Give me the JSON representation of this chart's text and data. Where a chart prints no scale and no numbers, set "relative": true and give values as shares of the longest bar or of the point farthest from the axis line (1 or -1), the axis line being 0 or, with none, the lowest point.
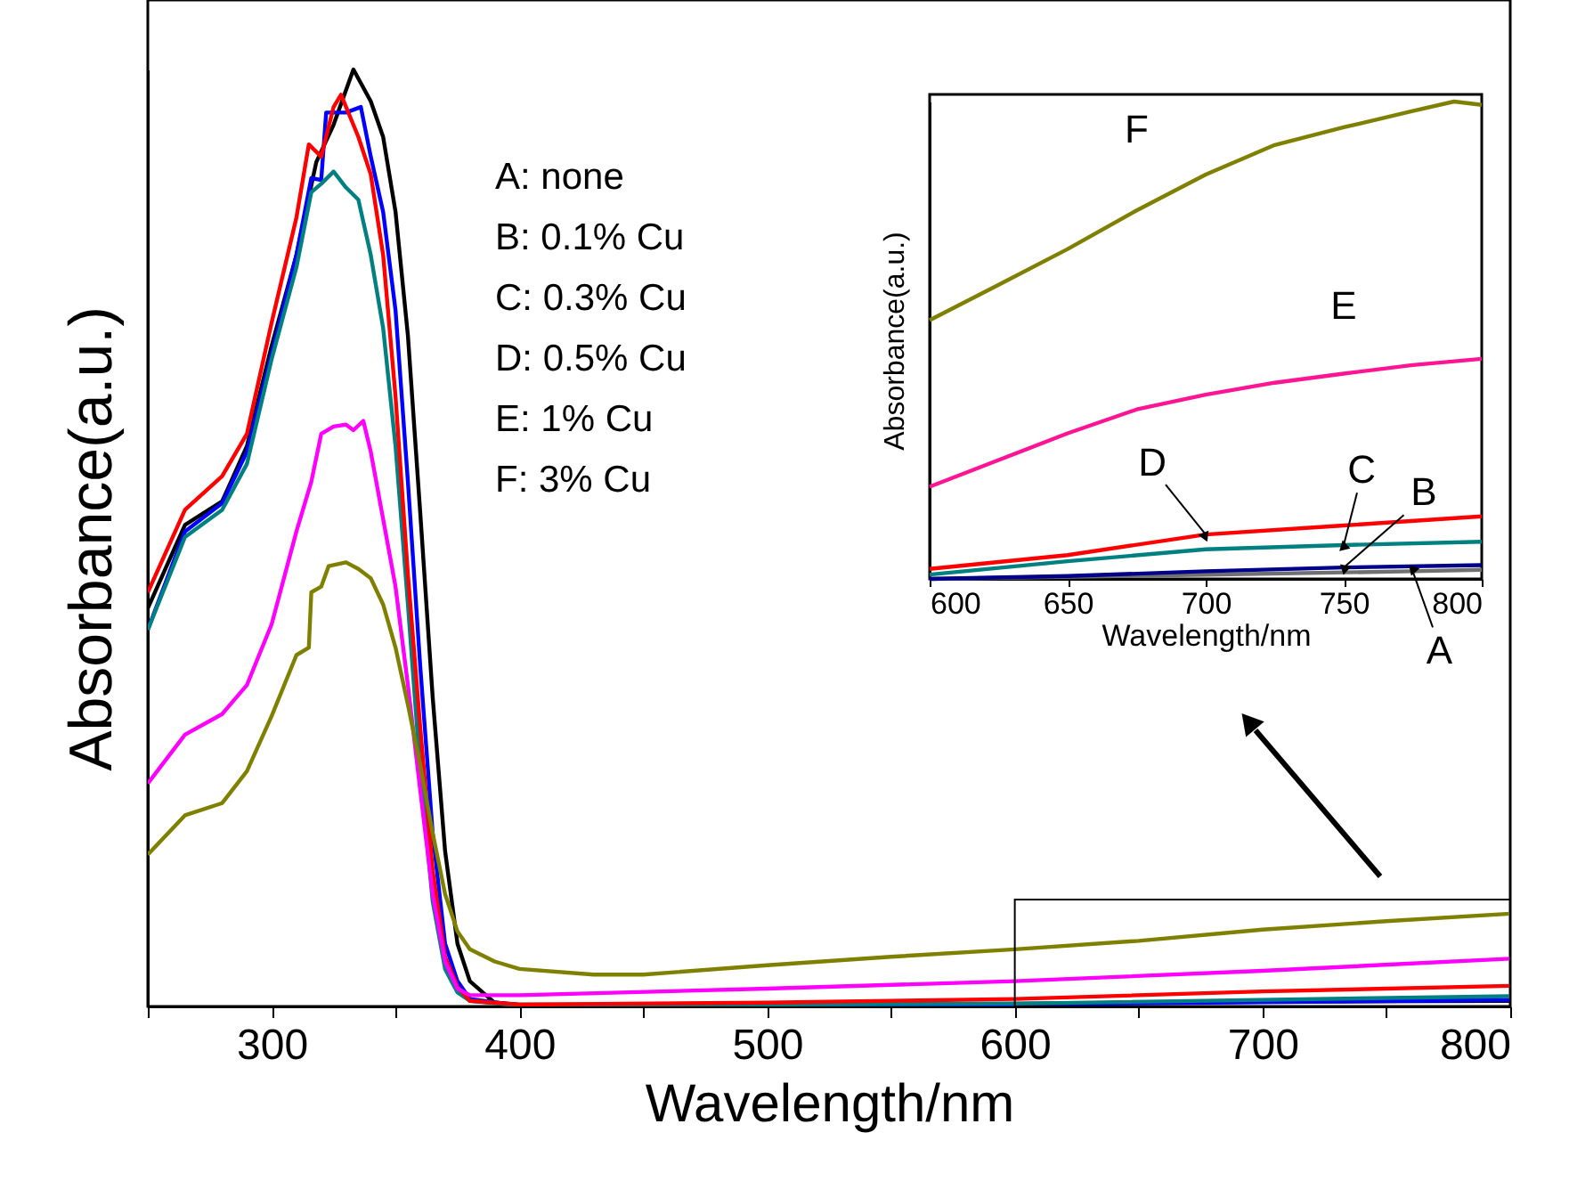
{
  "chart_data": [
    {
      "type": "line",
      "xlabel": "Wavelength/nm",
      "ylabel": "Absorbance(a.u.)",
      "relative": true,
      "xlim": [
        250,
        800
      ],
      "xticks": [
        {
          "value": 250,
          "label": null
        },
        300,
        {
          "value": 350,
          "label": null
        },
        400,
        {
          "value": 450,
          "label": null
        },
        500,
        {
          "value": 550,
          "label": null
        },
        600,
        {
          "value": 650,
          "label": null
        },
        700,
        {
          "value": 750,
          "label": null
        },
        800
      ],
      "grid": false,
      "annotations": [
        "A: none",
        "B: 0.1% Cu",
        "C: 0.3% Cu",
        "D: 0.5% Cu",
        "E: 1% Cu",
        "F: 3% Cu"
      ],
      "series": [
        {
          "color": "#000000",
          "x": [
            250,
            265,
            280,
            290,
            300,
            310,
            318,
            325,
            333,
            340,
            345,
            350,
            355,
            360,
            365,
            370,
            375,
            380,
            390,
            400,
            500,
            600,
            700,
            800
          ],
          "values": [
            0.425,
            0.514,
            0.539,
            0.598,
            0.705,
            0.802,
            0.901,
            0.941,
            1.0,
            0.966,
            0.928,
            0.848,
            0.716,
            0.526,
            0.33,
            0.166,
            0.067,
            0.027,
            0.004,
            0.002,
            0.002,
            0.003,
            0.005,
            0.006
          ]
        },
        {
          "color": "#0000ff",
          "x": [
            250,
            265,
            280,
            290,
            300,
            310,
            316,
            320,
            322,
            330,
            336,
            340,
            345,
            350,
            355,
            360,
            365,
            370,
            375,
            380,
            400,
            600,
            800
          ],
          "values": [
            0.402,
            0.507,
            0.537,
            0.592,
            0.697,
            0.802,
            0.884,
            0.882,
            0.954,
            0.954,
            0.96,
            0.907,
            0.848,
            0.743,
            0.56,
            0.362,
            0.185,
            0.067,
            0.027,
            0.008,
            0.001,
            0.002,
            0.007
          ]
        },
        {
          "color": "#008080",
          "x": [
            250,
            265,
            280,
            290,
            300,
            310,
            316,
            320,
            325,
            330,
            335,
            340,
            345,
            350,
            355,
            360,
            365,
            370,
            375,
            380,
            400,
            600,
            800
          ],
          "values": [
            0.402,
            0.501,
            0.53,
            0.579,
            0.691,
            0.789,
            0.869,
            0.878,
            0.891,
            0.874,
            0.861,
            0.802,
            0.724,
            0.598,
            0.429,
            0.251,
            0.112,
            0.04,
            0.015,
            0.006,
            0.001,
            0.003,
            0.011
          ]
        },
        {
          "color": "#ff0000",
          "x": [
            250,
            265,
            280,
            290,
            300,
            310,
            315,
            320,
            325,
            328,
            335,
            340,
            345,
            350,
            355,
            360,
            365,
            370,
            375,
            380,
            400,
            500,
            600,
            700,
            800
          ],
          "values": [
            0.442,
            0.53,
            0.566,
            0.611,
            0.73,
            0.842,
            0.92,
            0.907,
            0.96,
            0.973,
            0.928,
            0.888,
            0.802,
            0.651,
            0.461,
            0.297,
            0.145,
            0.053,
            0.021,
            0.006,
            0.002,
            0.004,
            0.008,
            0.016,
            0.022
          ]
        },
        {
          "color": "#ff00ff",
          "x": [
            250,
            265,
            280,
            290,
            300,
            310,
            316,
            320,
            325,
            330,
            333,
            337,
            340,
            345,
            350,
            355,
            360,
            365,
            370,
            375,
            380,
            400,
            500,
            600,
            700,
            800
          ],
          "values": [
            0.238,
            0.29,
            0.312,
            0.343,
            0.408,
            0.507,
            0.56,
            0.611,
            0.619,
            0.621,
            0.615,
            0.625,
            0.592,
            0.52,
            0.448,
            0.343,
            0.23,
            0.12,
            0.048,
            0.019,
            0.012,
            0.012,
            0.019,
            0.027,
            0.038,
            0.051
          ]
        },
        {
          "color": "#808000",
          "x": [
            250,
            265,
            280,
            290,
            300,
            310,
            315,
            316,
            320,
            323,
            330,
            335,
            340,
            345,
            350,
            355,
            360,
            365,
            370,
            375,
            380,
            390,
            400,
            430,
            450,
            500,
            550,
            600,
            650,
            700,
            750,
            800
          ],
          "values": [
            0.162,
            0.204,
            0.217,
            0.251,
            0.31,
            0.375,
            0.383,
            0.442,
            0.448,
            0.47,
            0.474,
            0.467,
            0.457,
            0.429,
            0.383,
            0.322,
            0.257,
            0.185,
            0.12,
            0.08,
            0.061,
            0.048,
            0.04,
            0.034,
            0.034,
            0.044,
            0.053,
            0.061,
            0.07,
            0.082,
            0.091,
            0.099
          ]
        }
      ]
    },
    {
      "type": "line",
      "xlabel": "Wavelength/nm",
      "ylabel": "Absorbance(a.u.)",
      "relative": true,
      "xlim": [
        600,
        800
      ],
      "xticks": [
        600,
        650,
        700,
        750,
        800
      ],
      "grid": false,
      "series": [
        {
          "name": "A",
          "color": "#707070",
          "x": [
            600,
            700,
            775,
            800
          ],
          "values": [
            0.0,
            0.009,
            0.016,
            0.019
          ]
        },
        {
          "name": "B",
          "color": "#00008b",
          "x": [
            600,
            650,
            700,
            750,
            800
          ],
          "values": [
            0.0,
            0.006,
            0.016,
            0.024,
            0.029
          ]
        },
        {
          "name": "C",
          "color": "#008080",
          "x": [
            600,
            650,
            700,
            750,
            800
          ],
          "values": [
            0.009,
            0.037,
            0.062,
            0.071,
            0.078
          ]
        },
        {
          "name": "D",
          "color": "#ff0000",
          "x": [
            600,
            650,
            700,
            750,
            800
          ],
          "values": [
            0.021,
            0.05,
            0.093,
            0.112,
            0.131
          ]
        },
        {
          "name": "E",
          "color": "#ff1493",
          "x": [
            600,
            625,
            650,
            675,
            700,
            725,
            750,
            775,
            800
          ],
          "values": [
            0.193,
            0.249,
            0.305,
            0.355,
            0.386,
            0.411,
            0.43,
            0.448,
            0.461
          ]
        },
        {
          "name": "F",
          "color": "#808000",
          "x": [
            600,
            625,
            650,
            675,
            700,
            725,
            750,
            775,
            790,
            800
          ],
          "values": [
            0.542,
            0.616,
            0.691,
            0.772,
            0.847,
            0.909,
            0.946,
            0.98,
            1.0,
            0.993
          ]
        }
      ]
    }
  ]
}
